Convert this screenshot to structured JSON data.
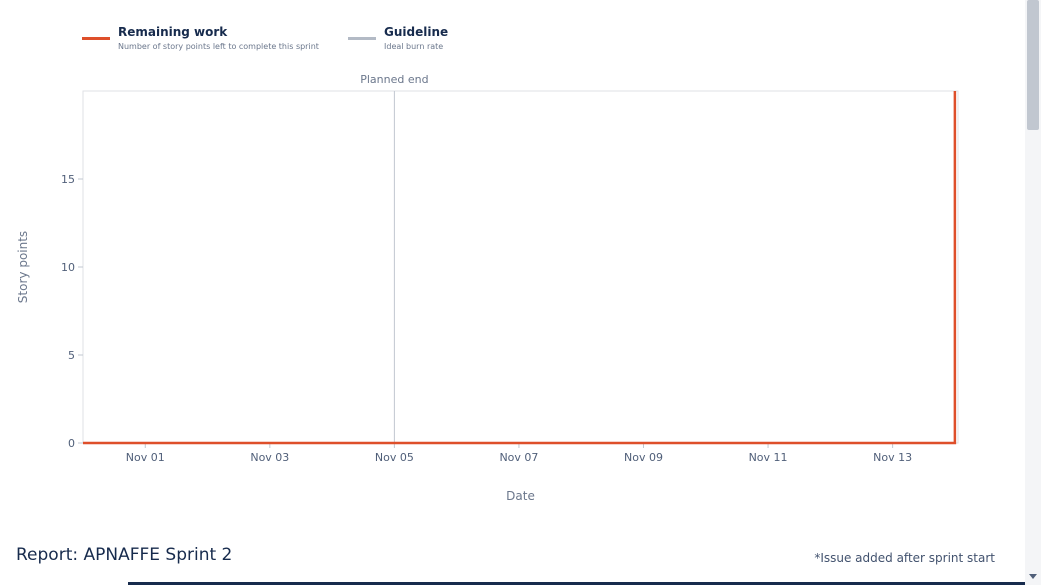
{
  "legend": [
    {
      "title": "Remaining work",
      "description": "Number of story points left to complete this sprint",
      "color": "#de4f2a"
    },
    {
      "title": "Guideline",
      "description": "Ideal burn rate",
      "color": "#b3bac5"
    }
  ],
  "chart_data": {
    "type": "line",
    "xlabel": "Date",
    "ylabel": "Story points",
    "x_ticks": [
      "Nov 01",
      "Nov 03",
      "Nov 05",
      "Nov 07",
      "Nov 09",
      "Nov 11",
      "Nov 13"
    ],
    "y_ticks": [
      0,
      5,
      10,
      15
    ],
    "xlim": [
      "Oct 31",
      "Nov 14"
    ],
    "ylim": [
      0,
      20
    ],
    "grid": false,
    "legend_position": "top-left",
    "annotations": [
      {
        "label": "Planned end",
        "x": "Nov 05"
      }
    ],
    "series": [
      {
        "name": "Remaining work",
        "color": "#de4f2a",
        "points": [
          {
            "x": "Oct 31",
            "y": 0
          },
          {
            "x": "Nov 14",
            "y": 0
          },
          {
            "x": "Nov 14",
            "y": 20
          }
        ]
      }
    ]
  },
  "report": {
    "title": "Report: APNAFFE Sprint 2",
    "footnote": "*Issue added after sprint start"
  }
}
